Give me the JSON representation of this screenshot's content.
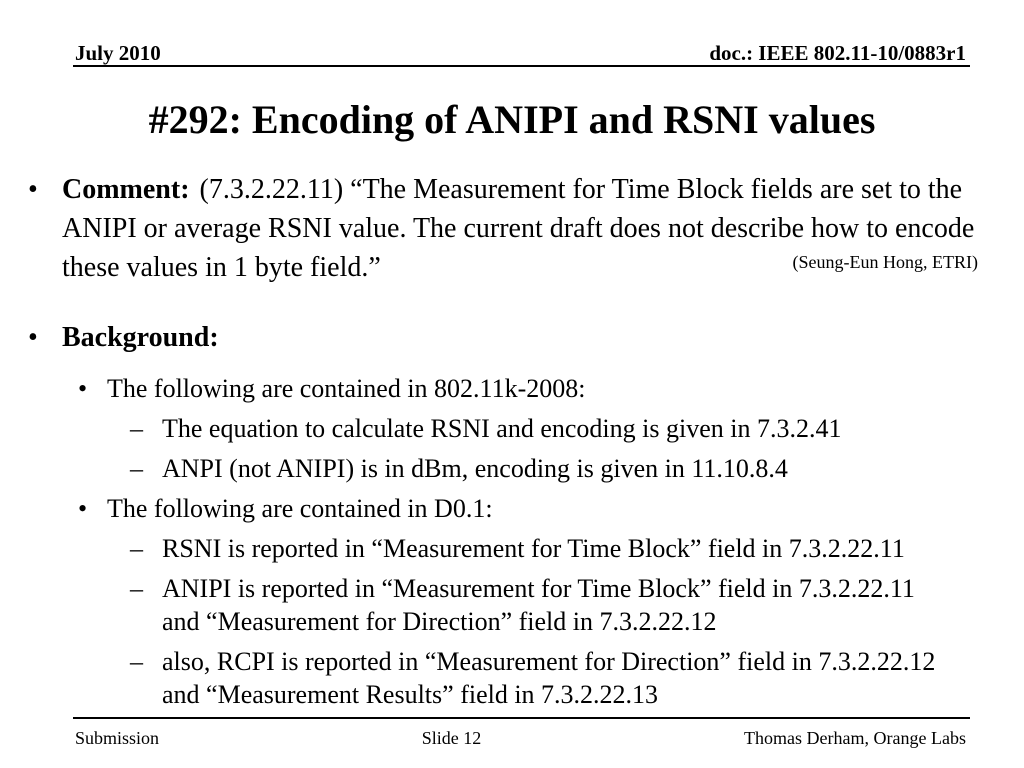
{
  "colors": {
    "background": "#ffffff",
    "text": "#000000"
  },
  "header": {
    "left": "July 2010",
    "right": "doc.: IEEE 802.11-10/0883r1"
  },
  "title": "#292: Encoding of ANIPI and RSNI values",
  "comment": {
    "bullet": "•",
    "label": "Comment:",
    "lines": [
      "(7.3.2.22.11) “The Measurement for Time Block fields are set to the",
      "ANIPI or average RSNI value. The current draft does not describe how to encode",
      "these values in 1 byte field.”"
    ],
    "attribution": "(Seung-Eun Hong, ETRI)"
  },
  "background": {
    "bullet": "•",
    "label": "Background:",
    "items": [
      {
        "level": 2,
        "marker": "•",
        "lines": [
          "The following are contained in 802.11k-2008:"
        ]
      },
      {
        "level": 3,
        "marker": "–",
        "lines": [
          "The equation to calculate RSNI and encoding is given in 7.3.2.41"
        ]
      },
      {
        "level": 3,
        "marker": "–",
        "lines": [
          "ANPI (not ANIPI) is in dBm, encoding is given in 11.10.8.4"
        ]
      },
      {
        "level": 2,
        "marker": "•",
        "lines": [
          "The following are contained in D0.1:"
        ]
      },
      {
        "level": 3,
        "marker": "–",
        "lines": [
          "RSNI is reported in “Measurement for Time Block” field in 7.3.2.22.11"
        ]
      },
      {
        "level": 3,
        "marker": "–",
        "lines": [
          "ANIPI is reported in “Measurement for Time Block” field in 7.3.2.22.11",
          "and “Measurement for Direction” field in 7.3.2.22.12"
        ]
      },
      {
        "level": 3,
        "marker": "–",
        "lines": [
          "also, RCPI is reported in “Measurement for Direction” field in 7.3.2.22.12",
          "and “Measurement Results” field in 7.3.2.22.13"
        ]
      }
    ]
  },
  "footer": {
    "left": "Submission",
    "center": "Slide 12",
    "right": "Thomas Derham, Orange Labs"
  }
}
